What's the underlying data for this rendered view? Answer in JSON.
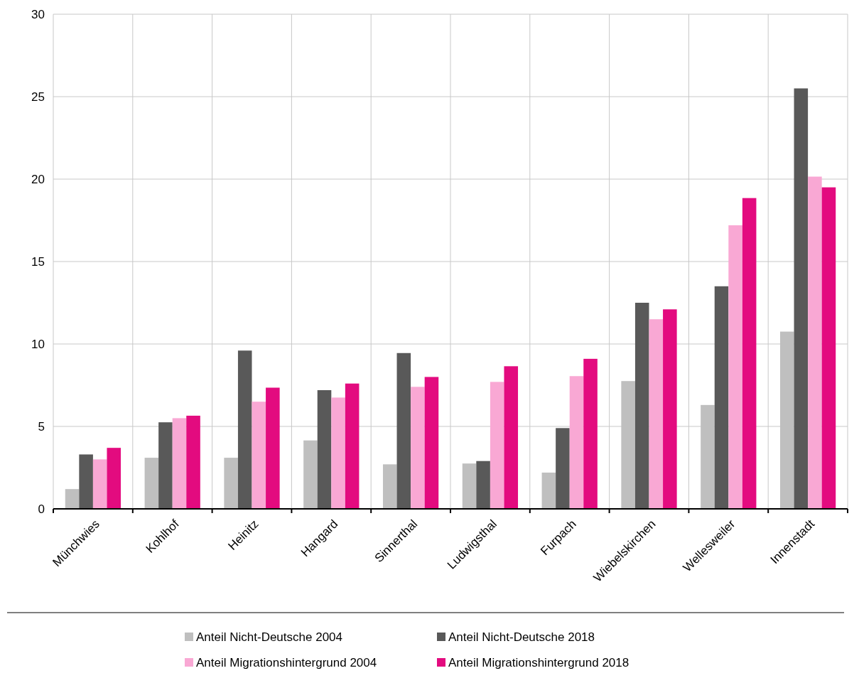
{
  "chart_data": {
    "type": "bar",
    "categories": [
      "Münchwies",
      "Kohlhof",
      "Heinitz",
      "Hangard",
      "Sinnerthal",
      "Ludwigsthal",
      "Furpach",
      "Wiebelskirchen",
      "Wellesweiler",
      "Innenstadt"
    ],
    "series": [
      {
        "name": "Anteil Nicht-Deutsche 2004",
        "color": "#bfbfbf",
        "values": [
          1.2,
          3.1,
          3.1,
          4.15,
          2.7,
          2.75,
          2.2,
          7.75,
          6.3,
          10.75
        ]
      },
      {
        "name": "Anteil Nicht-Deutsche 2018",
        "color": "#595959",
        "values": [
          3.3,
          5.25,
          9.6,
          7.2,
          9.45,
          2.9,
          4.9,
          12.5,
          13.5,
          25.5
        ]
      },
      {
        "name": "Anteil Migrationshintergrund 2004",
        "color": "#f9a8d4",
        "values": [
          3.0,
          5.5,
          6.5,
          6.75,
          7.4,
          7.7,
          8.05,
          11.5,
          17.2,
          20.15
        ]
      },
      {
        "name": "Anteil Migrationshintergrund 2018",
        "color": "#e30b7f",
        "values": [
          3.7,
          5.65,
          7.35,
          7.6,
          8.0,
          8.65,
          9.1,
          12.1,
          18.85,
          19.5
        ]
      }
    ],
    "ylim": [
      0,
      30
    ],
    "yticks": [
      0,
      5,
      10,
      15,
      20,
      25,
      30
    ],
    "grid": true,
    "legend": "bottom"
  }
}
